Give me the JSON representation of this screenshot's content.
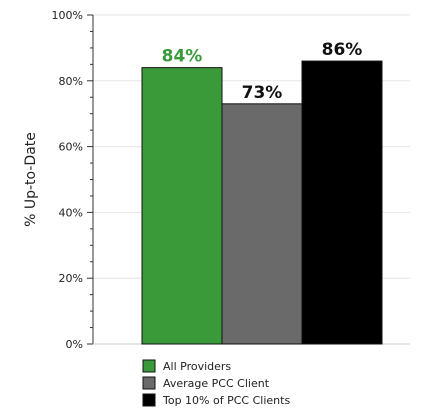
{
  "chart_data": {
    "type": "bar",
    "title": "",
    "xlabel": "",
    "ylabel": "% Up-to-Date",
    "ylim": [
      0,
      100
    ],
    "yticks": [
      "0%",
      "20%",
      "40%",
      "60%",
      "80%",
      "100%"
    ],
    "ytick_values": [
      0,
      20,
      40,
      60,
      80,
      100
    ],
    "grid": true,
    "legend_position": "bottom",
    "series": [
      {
        "name": "All Providers",
        "value": 84,
        "label": "84%",
        "color": "#3a9a3a",
        "label_color": "#3a9a3a"
      },
      {
        "name": "Average PCC Client",
        "value": 73,
        "label": "73%",
        "color": "#6a6a6a",
        "label_color": "#111111"
      },
      {
        "name": "Top 10% of PCC Clients",
        "value": 86,
        "label": "86%",
        "color": "#000000",
        "label_color": "#111111"
      }
    ]
  }
}
